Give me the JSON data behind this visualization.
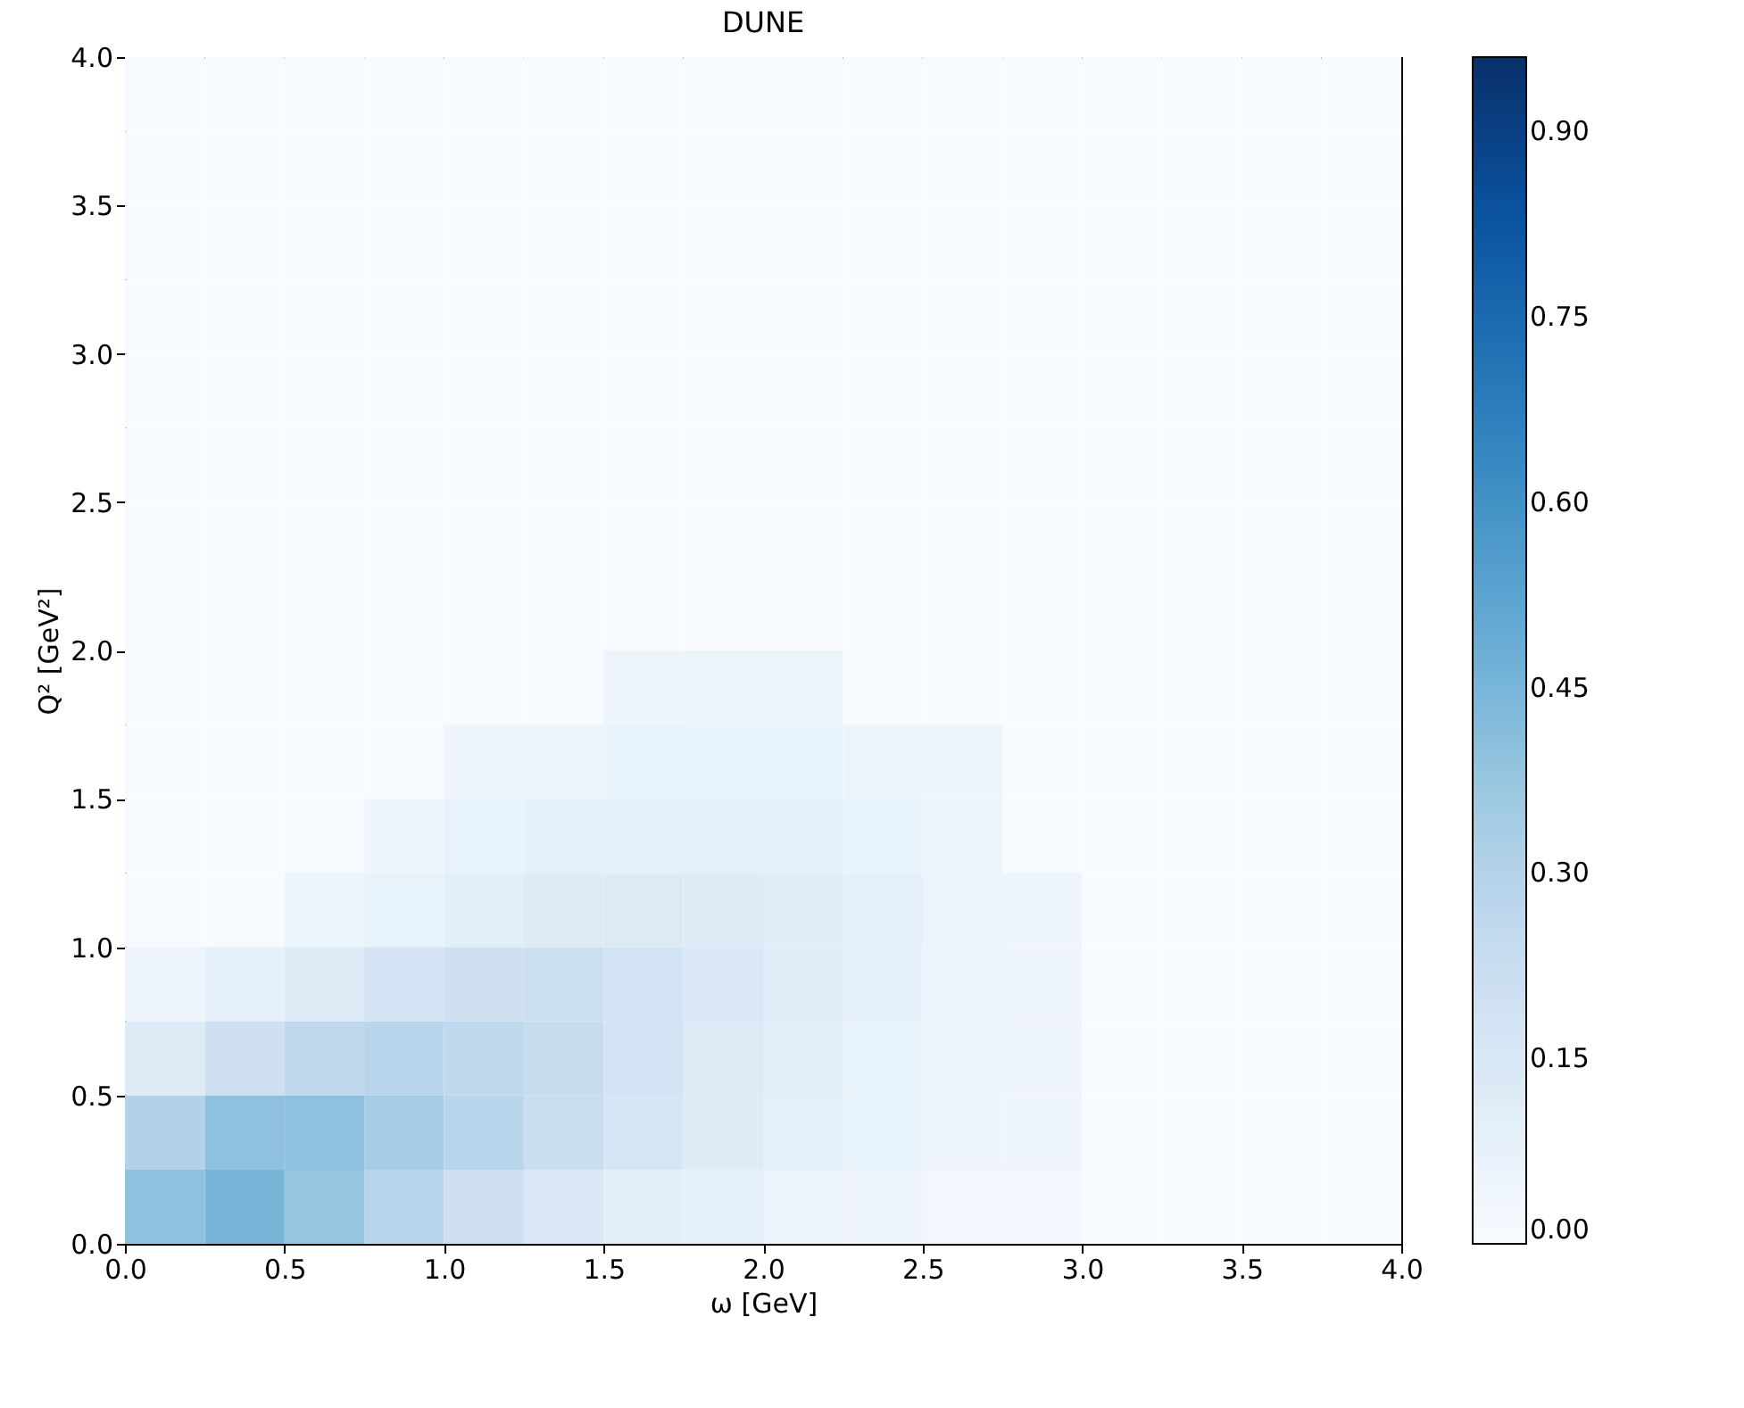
{
  "chart_data": {
    "type": "heatmap",
    "title": "DUNE",
    "xlabel": "ω [GeV]",
    "ylabel": "Q² [GeV²]",
    "x": [
      0.125,
      0.375,
      0.625,
      0.875,
      1.125,
      1.375,
      1.625,
      1.875,
      2.125,
      2.375,
      2.625,
      2.875,
      3.125,
      3.375,
      3.625,
      3.875
    ],
    "y": [
      3.875,
      3.625,
      3.375,
      3.125,
      2.875,
      2.625,
      2.375,
      2.125,
      1.875,
      1.625,
      1.375,
      1.125,
      0.875,
      0.625,
      0.375,
      0.125
    ],
    "xlim": [
      0,
      4
    ],
    "ylim": [
      0,
      4
    ],
    "xticks": [
      {
        "value": 0,
        "label": "0.0"
      },
      {
        "value": 0.5,
        "label": "0.5"
      },
      {
        "value": 1,
        "label": "1.0"
      },
      {
        "value": 1.5,
        "label": "1.5"
      },
      {
        "value": 2,
        "label": "2.0"
      },
      {
        "value": 2.5,
        "label": "2.5"
      },
      {
        "value": 3,
        "label": "3.0"
      },
      {
        "value": 3.5,
        "label": "3.5"
      },
      {
        "value": 4,
        "label": "4.0"
      }
    ],
    "yticks": [
      {
        "value": 0,
        "label": "0.0"
      },
      {
        "value": 0.5,
        "label": "0.5"
      },
      {
        "value": 1,
        "label": "1.0"
      },
      {
        "value": 1.5,
        "label": "1.5"
      },
      {
        "value": 2,
        "label": "2.0"
      },
      {
        "value": 2.5,
        "label": "2.5"
      },
      {
        "value": 3,
        "label": "3.0"
      },
      {
        "value": 3.5,
        "label": "3.5"
      },
      {
        "value": 4,
        "label": "4.0"
      }
    ],
    "clim": [
      0,
      0.96
    ],
    "cticks": [
      {
        "value": 0,
        "label": "0.00"
      },
      {
        "value": 0.15,
        "label": "0.15"
      },
      {
        "value": 0.3,
        "label": "0.30"
      },
      {
        "value": 0.45,
        "label": "0.45"
      },
      {
        "value": 0.6,
        "label": "0.60"
      },
      {
        "value": 0.75,
        "label": "0.75"
      },
      {
        "value": 0.9,
        "label": "0.90"
      }
    ],
    "grid": false,
    "cells": [
      [
        0,
        0,
        0,
        0,
        0,
        0,
        0,
        0,
        0,
        0,
        0,
        0,
        0,
        0,
        0,
        0
      ],
      [
        0,
        0,
        0,
        0,
        0,
        0,
        0,
        0,
        0,
        0,
        0,
        0,
        0,
        0,
        0,
        0
      ],
      [
        0,
        0,
        0,
        0,
        0,
        0,
        0,
        0,
        0,
        0,
        0,
        0,
        0,
        0,
        0,
        0
      ],
      [
        0,
        0,
        0,
        0,
        0,
        0,
        0,
        0,
        0,
        0,
        0,
        0,
        0,
        0,
        0,
        0
      ],
      [
        0,
        0,
        0,
        0,
        0,
        0,
        0,
        0,
        0,
        0,
        0,
        0,
        0,
        0,
        0,
        0
      ],
      [
        0,
        0,
        0,
        0,
        0,
        0,
        0,
        0,
        0,
        0,
        0,
        0,
        0,
        0,
        0,
        0
      ],
      [
        0,
        0,
        0,
        0,
        0,
        0,
        0,
        0,
        0,
        0,
        0,
        0,
        0,
        0,
        0,
        0
      ],
      [
        0,
        0,
        0,
        0,
        0,
        0,
        0,
        0,
        0,
        0,
        0,
        0,
        0,
        0,
        0,
        0
      ],
      [
        0,
        0,
        0,
        0,
        0,
        0,
        0.05,
        0.06,
        0.06,
        0,
        0,
        0,
        0,
        0,
        0,
        0
      ],
      [
        0,
        0,
        0,
        0,
        0.05,
        0.06,
        0.07,
        0.07,
        0.07,
        0.06,
        0.05,
        0,
        0,
        0,
        0,
        0
      ],
      [
        0,
        0,
        0,
        0.05,
        0.07,
        0.08,
        0.09,
        0.09,
        0.08,
        0.07,
        0.06,
        0,
        0,
        0,
        0,
        0
      ],
      [
        0,
        0,
        0.05,
        0.07,
        0.1,
        0.12,
        0.13,
        0.12,
        0.11,
        0.09,
        0.06,
        0.05,
        0,
        0,
        0,
        0
      ],
      [
        0.05,
        0.08,
        0.12,
        0.17,
        0.2,
        0.21,
        0.18,
        0.14,
        0.11,
        0.08,
        0.06,
        0.05,
        0,
        0,
        0,
        0
      ],
      [
        0.12,
        0.2,
        0.26,
        0.28,
        0.26,
        0.23,
        0.18,
        0.13,
        0.1,
        0.07,
        0.06,
        0.05,
        0,
        0,
        0,
        0
      ],
      [
        0.3,
        0.4,
        0.4,
        0.34,
        0.28,
        0.22,
        0.16,
        0.12,
        0.09,
        0.07,
        0.05,
        0.05,
        0,
        0,
        0,
        0
      ],
      [
        0.4,
        0.45,
        0.38,
        0.28,
        0.2,
        0.14,
        0.1,
        0.08,
        0.06,
        0.05,
        0.03,
        0.02,
        0,
        0,
        0,
        0
      ]
    ]
  }
}
